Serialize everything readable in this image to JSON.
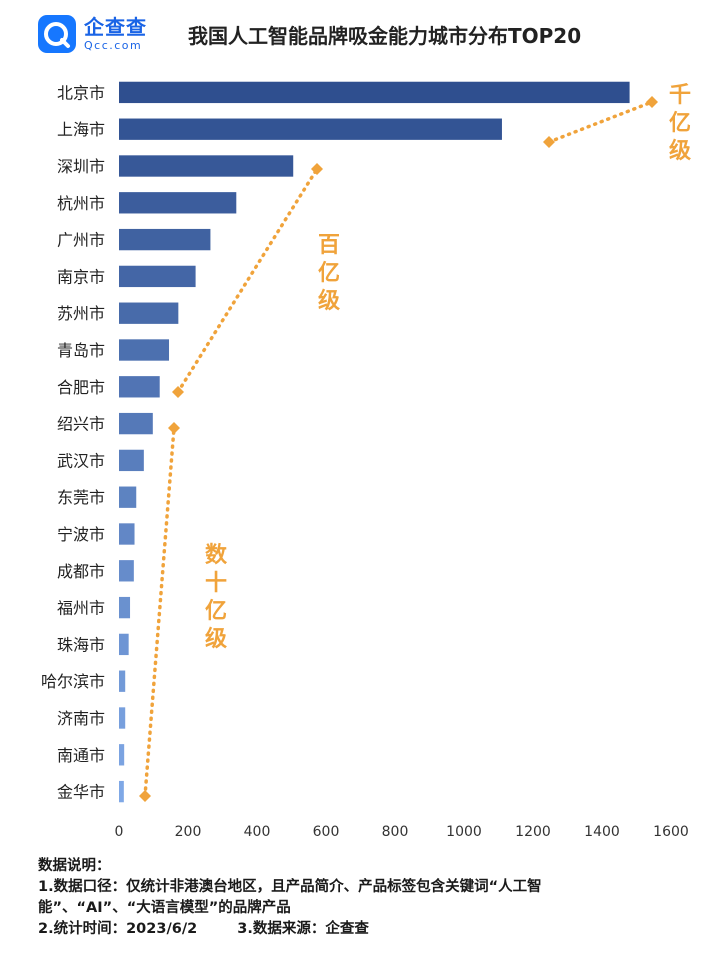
{
  "header": {
    "logo_name": "企查查",
    "logo_domain": "Qcc.com",
    "title": "我国人工智能品牌吸金能力城市分布TOP20"
  },
  "chart_data": {
    "type": "bar",
    "orientation": "horizontal",
    "categories": [
      "北京市",
      "上海市",
      "深圳市",
      "杭州市",
      "广州市",
      "南京市",
      "苏州市",
      "青岛市",
      "合肥市",
      "绍兴市",
      "武汉市",
      "东莞市",
      "宁波市",
      "成都市",
      "福州市",
      "珠海市",
      "哈尔滨市",
      "济南市",
      "南通市",
      "金华市"
    ],
    "values": [
      1480,
      1110,
      505,
      340,
      265,
      222,
      172,
      145,
      118,
      98,
      72,
      50,
      45,
      43,
      32,
      28,
      18,
      18,
      15,
      14
    ],
    "xlim": [
      0,
      1600
    ],
    "xticks": [
      0,
      200,
      400,
      600,
      800,
      1000,
      1200,
      1400,
      1600
    ],
    "grid": false,
    "annotations": [
      {
        "text": "千亿级"
      },
      {
        "text": "百亿级"
      },
      {
        "text": "数十亿级"
      }
    ]
  },
  "notes": {
    "heading": "数据说明：",
    "line1": "1.数据口径：仅统计非港澳台地区，且产品简介、产品标签包含关键词“人工智",
    "line2": "能”、“AI”、“大语言模型”的品牌产品",
    "stat_time": "2.统计时间：2023/6/2",
    "source": "3.数据来源：企查查"
  },
  "colors": {
    "bar_dark": "#2f4f8f",
    "bar_light": "#7fa8e6",
    "annotation": "#f0a33b",
    "brand": "#1677ff"
  }
}
